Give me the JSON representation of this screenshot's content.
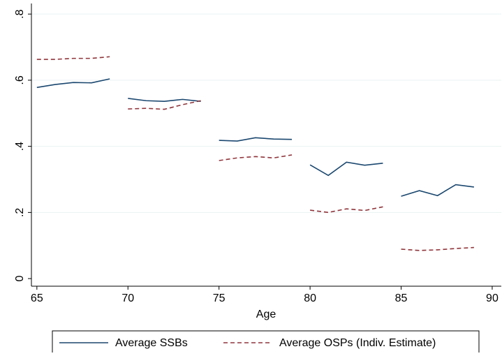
{
  "chart_data": {
    "type": "line",
    "x": [
      65,
      66,
      67,
      68,
      69,
      null,
      70,
      71,
      72,
      73,
      74,
      null,
      75,
      76,
      77,
      78,
      79,
      null,
      80,
      81,
      82,
      83,
      84,
      null,
      85,
      86,
      87,
      88,
      89
    ],
    "series": [
      {
        "name": "Average SSBs",
        "color": "#1a476f",
        "dash": false,
        "values": [
          0.578,
          0.587,
          0.593,
          0.592,
          0.604,
          null,
          0.545,
          0.538,
          0.536,
          0.542,
          0.536,
          null,
          0.418,
          0.416,
          0.426,
          0.422,
          0.421,
          null,
          0.344,
          0.312,
          0.352,
          0.343,
          0.349,
          null,
          0.249,
          0.266,
          0.251,
          0.284,
          0.277
        ]
      },
      {
        "name": "Average OSPs (Indiv. Estimate)",
        "color": "#90353b",
        "dash": true,
        "values": [
          0.663,
          0.663,
          0.666,
          0.666,
          0.671,
          null,
          0.513,
          0.515,
          0.512,
          0.526,
          0.538,
          null,
          0.357,
          0.365,
          0.369,
          0.365,
          0.374,
          null,
          0.207,
          0.2,
          0.211,
          0.206,
          0.217,
          null,
          0.089,
          0.085,
          0.087,
          0.091,
          0.094
        ]
      }
    ],
    "x_label": "Age",
    "xlim": [
      64.7,
      90.5
    ],
    "xticks": [
      65,
      70,
      75,
      80,
      85,
      90
    ],
    "ylim": [
      -0.023,
      0.832
    ],
    "yticks": [
      0,
      {
        "value": 0.2,
        "label": ".2"
      },
      {
        "value": 0.4,
        "label": ".4"
      },
      {
        "value": 0.6,
        "label": ".6"
      },
      {
        "value": 0.8,
        "label": ".8"
      }
    ],
    "grid": true,
    "legend": "bottom"
  }
}
